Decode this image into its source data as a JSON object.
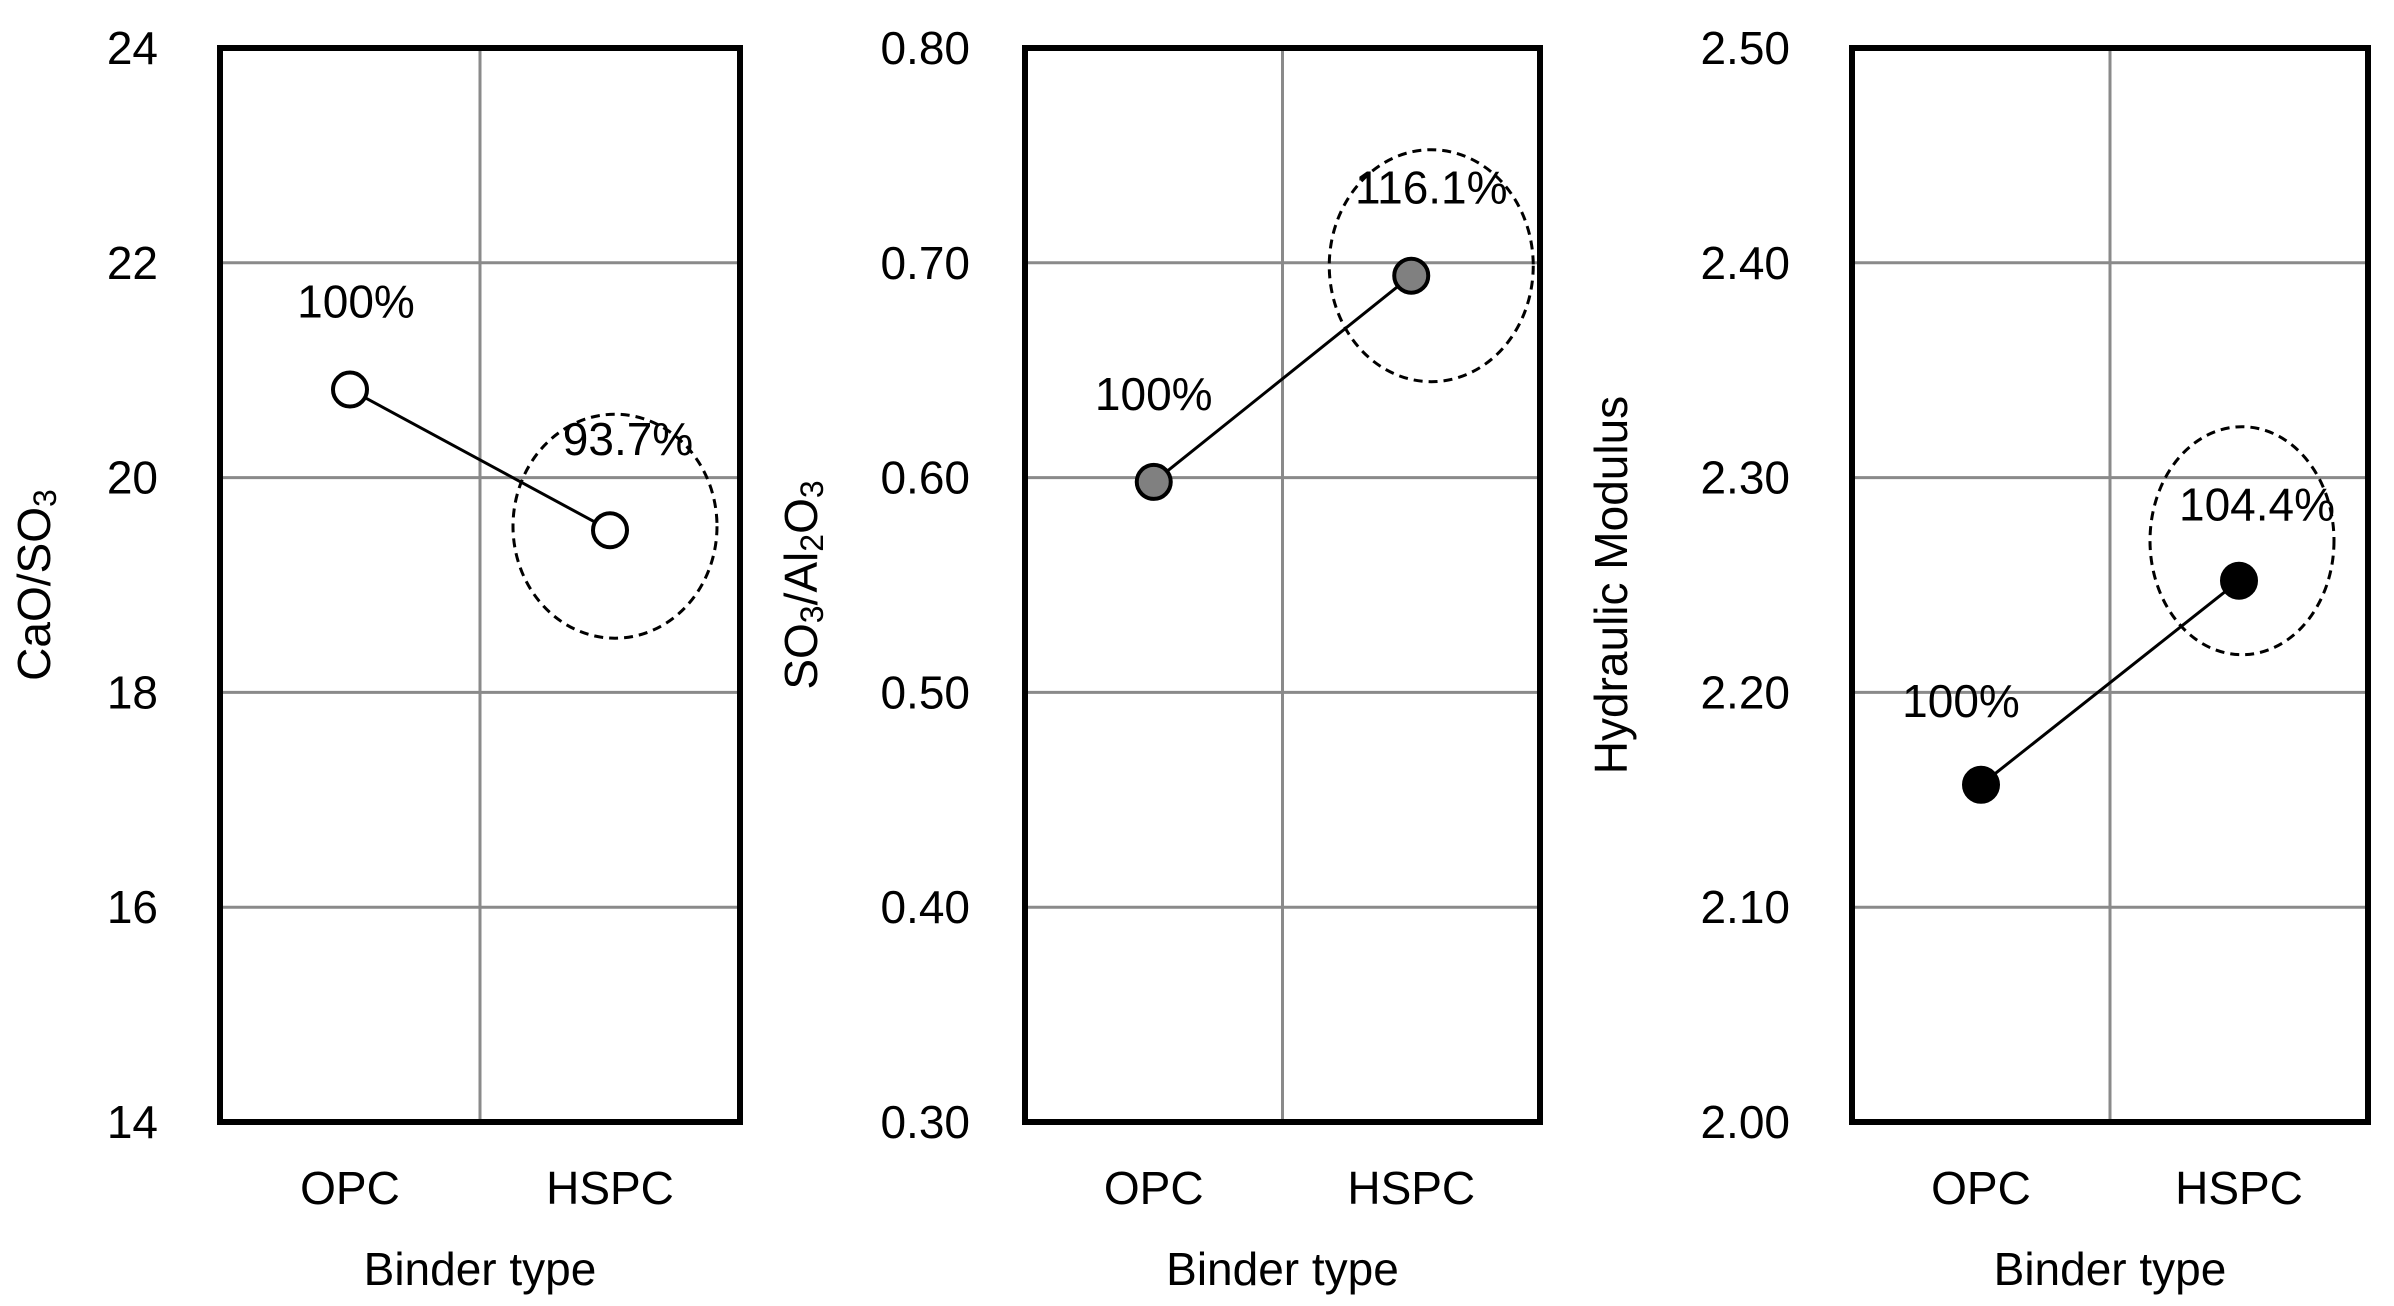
{
  "chart_data": [
    {
      "type": "line",
      "categories": [
        "OPC",
        "HSPC"
      ],
      "values": [
        20.82,
        19.51
      ],
      "point_labels": [
        "100%",
        "93.7%"
      ],
      "xlabel": "Binder type",
      "ylabel": "CaO/SO",
      "ylabel_sub": "3",
      "ylim": [
        14,
        24
      ],
      "yticks": [
        "14",
        "16",
        "18",
        "20",
        "22",
        "24"
      ],
      "marker_fill": "#ffffff",
      "highlight": "dashed ellipse around HSPC",
      "grid": true
    },
    {
      "type": "line",
      "categories": [
        "OPC",
        "HSPC"
      ],
      "values": [
        0.598,
        0.694
      ],
      "point_labels": [
        "100%",
        "116.1%"
      ],
      "xlabel": "Binder type",
      "ylabel": "SO",
      "ylabel_sub": "3",
      "ylabel_mid": "/Al",
      "ylabel_sub2": "2",
      "ylabel_end": "O",
      "ylabel_sub3": "3",
      "ylim": [
        0.3,
        0.8
      ],
      "yticks": [
        "0.30",
        "0.40",
        "0.50",
        "0.60",
        "0.70",
        "0.80"
      ],
      "marker_fill": "#808080",
      "highlight": "dashed ellipse around HSPC",
      "grid": true
    },
    {
      "type": "line",
      "categories": [
        "OPC",
        "HSPC"
      ],
      "values": [
        2.157,
        2.252
      ],
      "point_labels": [
        "100%",
        "104.4%"
      ],
      "xlabel": "Binder type",
      "ylabel": "Hydraulic Modulus",
      "ylim": [
        2.0,
        2.5
      ],
      "yticks": [
        "2.00",
        "2.10",
        "2.20",
        "2.30",
        "2.40",
        "2.50"
      ],
      "marker_fill": "#000000",
      "highlight": "dashed ellipse around HSPC",
      "grid": true
    }
  ]
}
